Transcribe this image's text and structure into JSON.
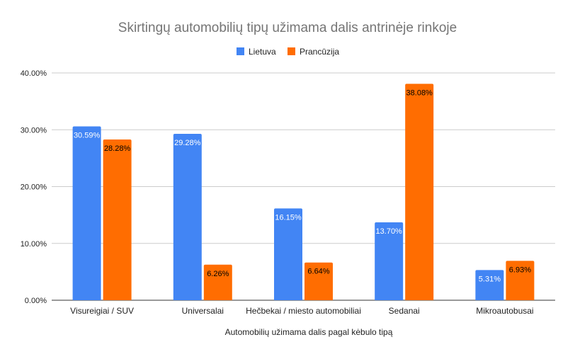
{
  "chart_data": {
    "type": "bar",
    "title": "Skirtingų automobilių tipų užimama dalis antrinėje rinkoje",
    "xlabel": "Automobilių užimama dalis pagal kėbulo tipą",
    "ylabel": "",
    "categories": [
      "Visureigiai / SUV",
      "Universalai",
      "Hečbekai / miesto automobiliai",
      "Sedanai",
      "Mikroautobusai"
    ],
    "series": [
      {
        "name": "Lietuva",
        "color": "#4285f4",
        "label_color": "#ffffff",
        "values": [
          30.59,
          29.28,
          16.15,
          13.7,
          5.31
        ],
        "data_labels": [
          "30.59%",
          "29.28%",
          "16.15%",
          "13.70%",
          "5.31%"
        ]
      },
      {
        "name": "Prancūzija",
        "color": "#ff6d01",
        "label_color": "#000000",
        "values": [
          28.28,
          6.26,
          6.64,
          38.08,
          6.93
        ],
        "data_labels": [
          "28.28%",
          "6.26%",
          "6.64%",
          "38.08%",
          "6.93%"
        ]
      }
    ],
    "ylim": [
      0,
      40
    ],
    "y_ticks": [
      0,
      10,
      20,
      30,
      40
    ],
    "y_tick_labels": [
      "0.00%",
      "10.00%",
      "20.00%",
      "30.00%",
      "40.00%"
    ],
    "legend_position": "top",
    "grid": true
  }
}
